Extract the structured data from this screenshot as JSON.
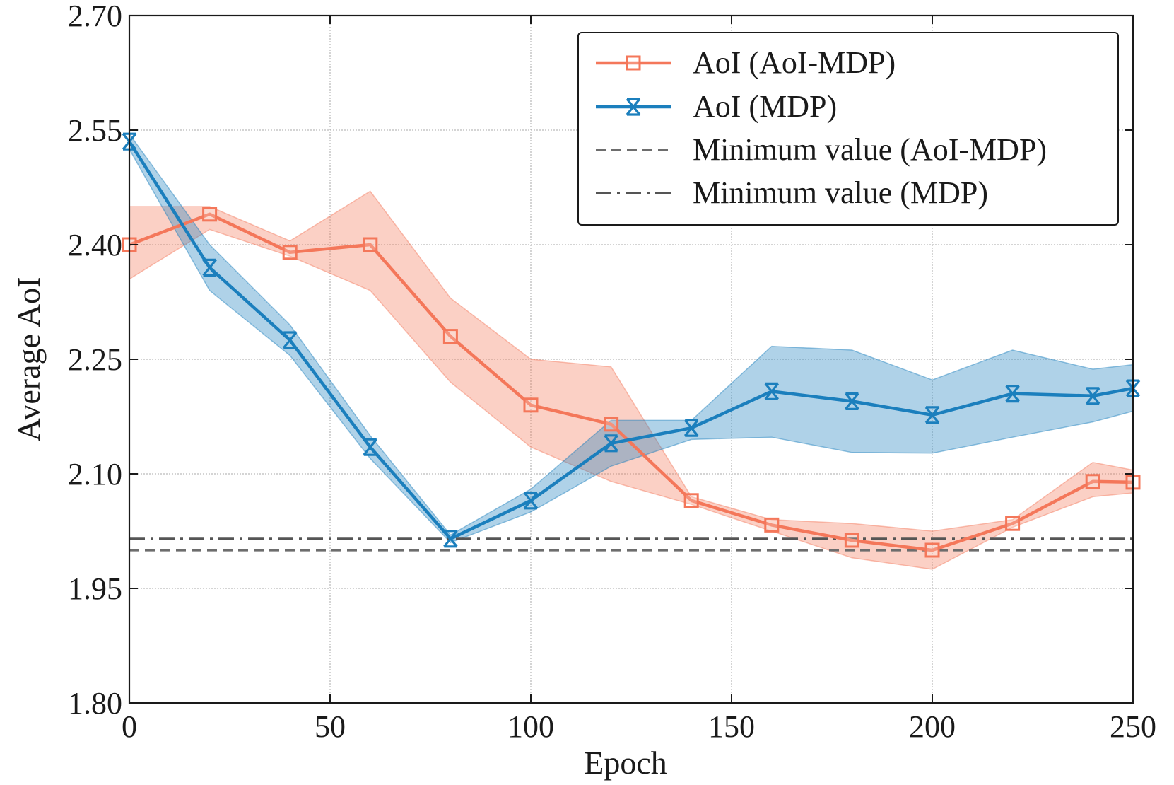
{
  "chart_data": {
    "type": "line",
    "xlabel": "Epoch",
    "ylabel": "Average AoI",
    "xlim": [
      0,
      250
    ],
    "ylim": [
      1.8,
      2.7
    ],
    "xticks": [
      "0",
      "50",
      "100",
      "150",
      "200",
      "250"
    ],
    "xtick_values": [
      0,
      50,
      100,
      150,
      200,
      250
    ],
    "yticks": [
      "1.80",
      "1.95",
      "2.10",
      "2.25",
      "2.40",
      "2.55",
      "2.70"
    ],
    "ytick_values": [
      1.8,
      1.95,
      2.1,
      2.25,
      2.4,
      2.55,
      2.7
    ],
    "grid": true,
    "legend_position": "top-right",
    "x": [
      0,
      20,
      40,
      60,
      80,
      100,
      120,
      140,
      160,
      180,
      200,
      220,
      240,
      250
    ],
    "series": [
      {
        "name": "AoI (AoI-MDP)",
        "color": "#f4775a",
        "marker": "square",
        "values": [
          2.4,
          2.44,
          2.39,
          2.4,
          2.28,
          2.19,
          2.165,
          2.065,
          2.033,
          2.013,
          2.0,
          2.035,
          2.09,
          2.089
        ],
        "upper": [
          2.45,
          2.45,
          2.405,
          2.47,
          2.33,
          2.25,
          2.24,
          2.07,
          2.04,
          2.035,
          2.025,
          2.04,
          2.115,
          2.105
        ],
        "lower": [
          2.355,
          2.42,
          2.385,
          2.34,
          2.22,
          2.135,
          2.09,
          2.06,
          2.025,
          1.99,
          1.975,
          2.03,
          2.07,
          2.075
        ]
      },
      {
        "name": "AoI (MDP)",
        "color": "#1b7fbd",
        "marker": "x-cross",
        "values": [
          2.535,
          2.37,
          2.275,
          2.135,
          2.015,
          2.065,
          2.14,
          2.16,
          2.208,
          2.195,
          2.177,
          2.205,
          2.202,
          2.212
        ],
        "upper": [
          2.545,
          2.4,
          2.295,
          2.15,
          2.02,
          2.08,
          2.17,
          2.17,
          2.267,
          2.262,
          2.223,
          2.262,
          2.237,
          2.243
        ],
        "lower": [
          2.525,
          2.34,
          2.255,
          2.12,
          2.01,
          2.05,
          2.11,
          2.145,
          2.148,
          2.128,
          2.127,
          2.148,
          2.168,
          2.182
        ]
      }
    ],
    "reference_lines": [
      {
        "name": "Minimum value (AoI-MDP)",
        "value": 2.0,
        "style": "dashed",
        "color": "#6d6d6d"
      },
      {
        "name": "Minimum value (MDP)",
        "value": 2.015,
        "style": "dashdot",
        "color": "#555555"
      }
    ]
  }
}
